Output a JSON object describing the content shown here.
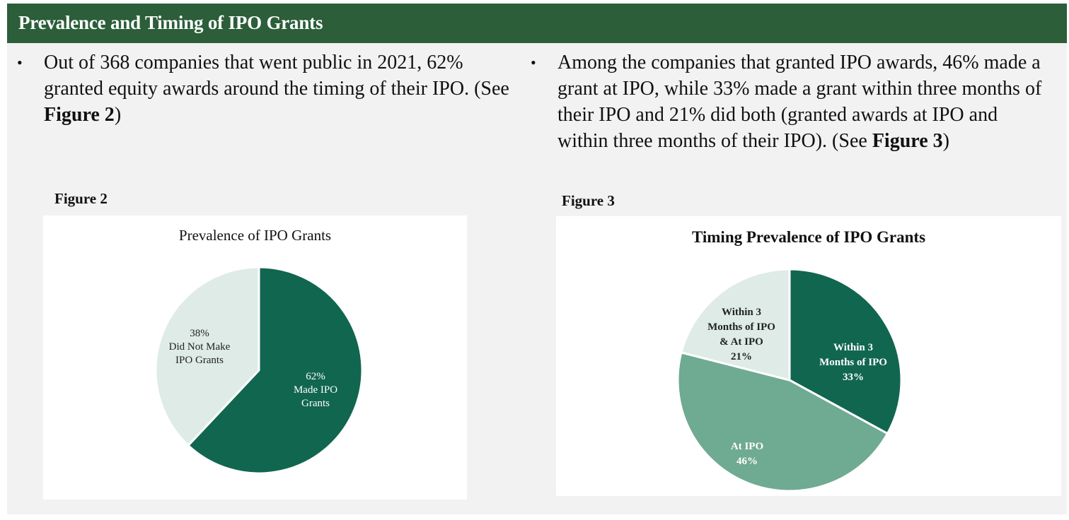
{
  "header": {
    "title": "Prevalence and Timing of IPO Grants"
  },
  "bullets": [
    {
      "symbol": "•",
      "text_before": "Out of 368 companies that went public in 2021, 62% granted equity awards around the timing of their IPO. (See ",
      "bold": "Figure 2",
      "text_after": ")"
    },
    {
      "symbol": "•",
      "text_before": "Among the companies that granted IPO awards, 46% made a grant at IPO, while 33% made a grant within three months of their IPO and 21% did both (granted awards at IPO and within three months of their IPO). (See ",
      "bold": "Figure 3",
      "text_after": ")"
    }
  ],
  "figures": [
    {
      "label": "Figure 2"
    },
    {
      "label": "Figure 3"
    }
  ],
  "colors": {
    "header": "#2b5e39",
    "dark_green": "#116650",
    "mid_green": "#6faa92",
    "light_green": "#deebe6",
    "panel": "#f2f2f2"
  },
  "chart_data": [
    {
      "type": "pie",
      "title": "Prevalence of IPO Grants",
      "start_angle_deg": 0,
      "direction": "clockwise",
      "slices": [
        {
          "name": "Made IPO Grants",
          "value": 62,
          "label_lines": [
            "62%",
            "Made IPO",
            "Grants"
          ],
          "color": "#116650",
          "label_color": "#ffffff",
          "label_bold": false
        },
        {
          "name": "Did Not Make IPO Grants",
          "value": 38,
          "label_lines": [
            "38%",
            "Did Not Make",
            "IPO Grants"
          ],
          "color": "#deebe6",
          "label_color": "#222222",
          "label_bold": false
        }
      ]
    },
    {
      "type": "pie",
      "title": "Timing Prevalence of IPO Grants",
      "start_angle_deg": 0,
      "direction": "clockwise",
      "slices": [
        {
          "name": "Within 3 Months of IPO",
          "value": 33,
          "label_lines": [
            "Within 3",
            "Months of IPO",
            "33%"
          ],
          "color": "#116650",
          "label_color": "#ffffff",
          "label_bold": true
        },
        {
          "name": "At IPO",
          "value": 46,
          "label_lines": [
            "At IPO",
            "46%"
          ],
          "color": "#6faa92",
          "label_color": "#ffffff",
          "label_bold": true
        },
        {
          "name": "Within 3 Months of IPO & At IPO",
          "value": 21,
          "label_lines": [
            "Within 3",
            "Months of IPO",
            "& At IPO",
            "21%"
          ],
          "color": "#deebe6",
          "label_color": "#222222",
          "label_bold": true
        }
      ]
    }
  ]
}
